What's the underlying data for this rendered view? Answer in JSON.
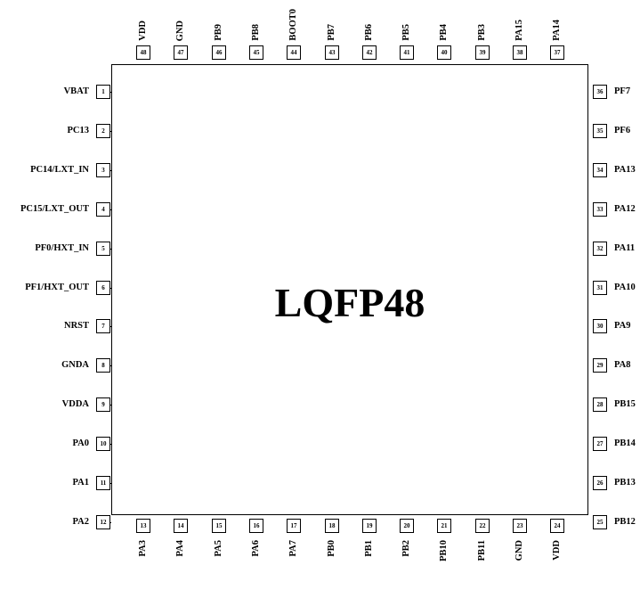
{
  "chip": {
    "title": "LQFP48"
  },
  "pins": {
    "left": [
      {
        "num": "1",
        "name": "VBAT"
      },
      {
        "num": "2",
        "name": "PC13"
      },
      {
        "num": "3",
        "name": "PC14/LXT_IN"
      },
      {
        "num": "4",
        "name": "PC15/LXT_OUT"
      },
      {
        "num": "5",
        "name": "PF0/HXT_IN"
      },
      {
        "num": "6",
        "name": "PF1/HXT_OUT"
      },
      {
        "num": "7",
        "name": "NRST"
      },
      {
        "num": "8",
        "name": "GNDA"
      },
      {
        "num": "9",
        "name": "VDDA"
      },
      {
        "num": "10",
        "name": "PA0"
      },
      {
        "num": "11",
        "name": "PA1"
      },
      {
        "num": "12",
        "name": "PA2"
      }
    ],
    "bottom": [
      {
        "num": "13",
        "name": "PA3"
      },
      {
        "num": "14",
        "name": "PA4"
      },
      {
        "num": "15",
        "name": "PA5"
      },
      {
        "num": "16",
        "name": "PA6"
      },
      {
        "num": "17",
        "name": "PA7"
      },
      {
        "num": "18",
        "name": "PB0"
      },
      {
        "num": "19",
        "name": "PB1"
      },
      {
        "num": "20",
        "name": "PB2"
      },
      {
        "num": "21",
        "name": "PB10"
      },
      {
        "num": "22",
        "name": "PB11"
      },
      {
        "num": "23",
        "name": "GND"
      },
      {
        "num": "24",
        "name": "VDD"
      }
    ],
    "right": [
      {
        "num": "25",
        "name": "PB12"
      },
      {
        "num": "26",
        "name": "PB13"
      },
      {
        "num": "27",
        "name": "PB14"
      },
      {
        "num": "28",
        "name": "PB15"
      },
      {
        "num": "29",
        "name": "PA8"
      },
      {
        "num": "30",
        "name": "PA9"
      },
      {
        "num": "31",
        "name": "PA10"
      },
      {
        "num": "32",
        "name": "PA11"
      },
      {
        "num": "33",
        "name": "PA12"
      },
      {
        "num": "34",
        "name": "PA13"
      },
      {
        "num": "35",
        "name": "PF6"
      },
      {
        "num": "36",
        "name": "PF7"
      }
    ],
    "top": [
      {
        "num": "37",
        "name": "PA14"
      },
      {
        "num": "38",
        "name": "PA15"
      },
      {
        "num": "39",
        "name": "PB3"
      },
      {
        "num": "40",
        "name": "PB4"
      },
      {
        "num": "41",
        "name": "PB5"
      },
      {
        "num": "42",
        "name": "PB6"
      },
      {
        "num": "43",
        "name": "PB7"
      },
      {
        "num": "44",
        "name": "BOOT0"
      },
      {
        "num": "45",
        "name": "PB8"
      },
      {
        "num": "46",
        "name": "PB9"
      },
      {
        "num": "47",
        "name": "GND"
      },
      {
        "num": "48",
        "name": "VDD"
      }
    ]
  }
}
